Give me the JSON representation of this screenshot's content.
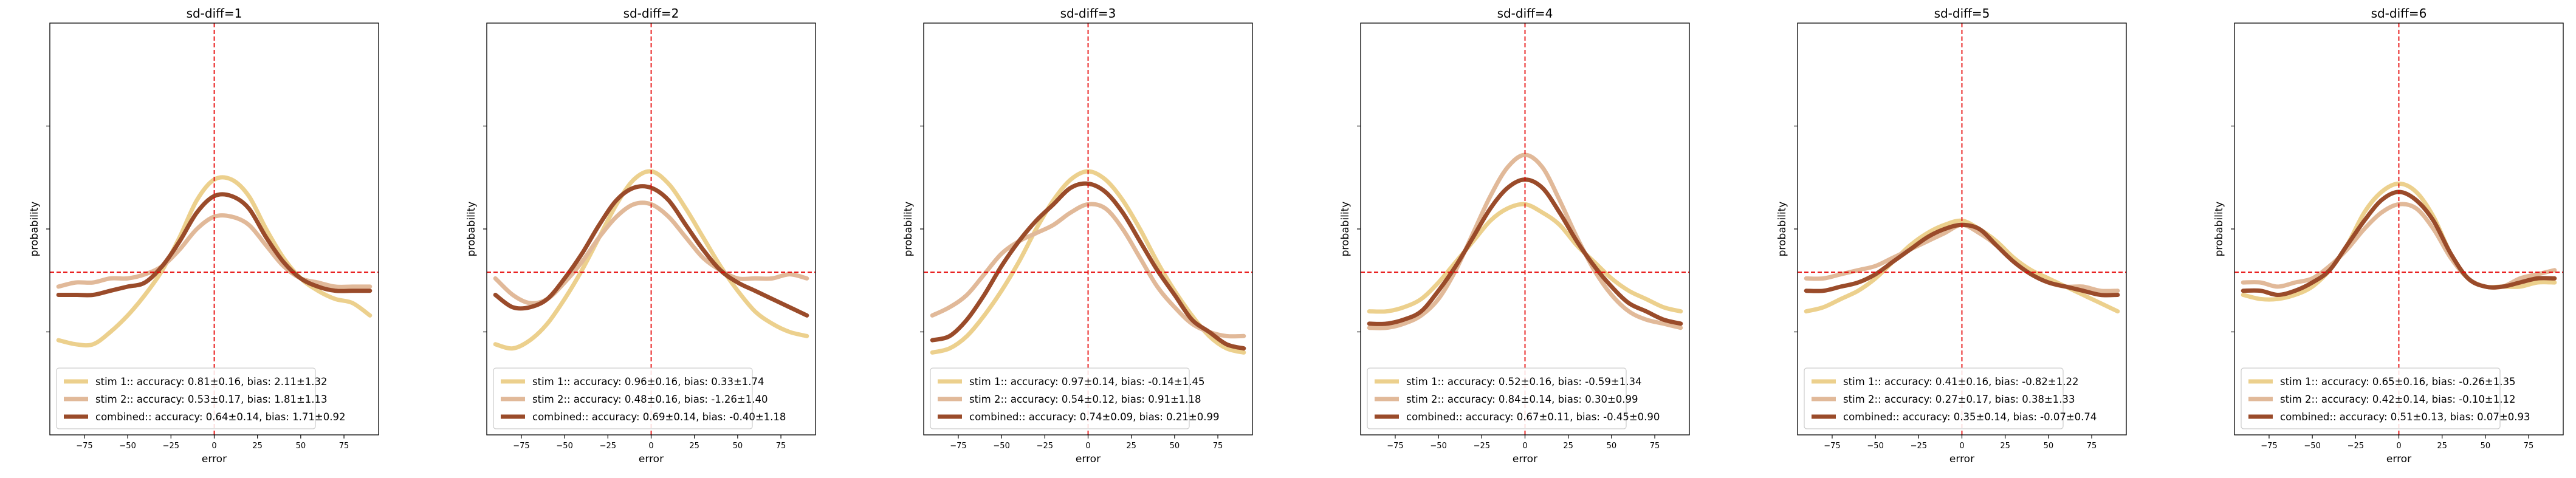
{
  "colors": {
    "stim1": "#ecd08d",
    "stim2": "#e1b999",
    "combined": "#9a4b2a",
    "reference": "#e60000"
  },
  "chart_data": [
    {
      "type": "line",
      "title": "sd-diff=1",
      "xlabel": "error",
      "ylabel": "probability",
      "xlim": [
        -95,
        95
      ],
      "ylim": [
        0,
        1
      ],
      "xticks": [
        -75,
        -50,
        -25,
        0,
        25,
        50,
        75
      ],
      "tick_labels": [
        "−75",
        "−50",
        "−25",
        "0",
        "25",
        "50",
        "75"
      ],
      "reference_lines": {
        "x": 0,
        "y": 0.395
      },
      "legend_loc": "lower-left",
      "x": [
        -90,
        -80,
        -70,
        -60,
        -50,
        -40,
        -30,
        -20,
        -10,
        0,
        10,
        20,
        30,
        40,
        50,
        60,
        70,
        80,
        90
      ],
      "series": [
        {
          "name": "stim 1:: accuracy: 0.81±0.16, bias: 2.11±1.32",
          "values": [
            0.23,
            0.22,
            0.22,
            0.25,
            0.29,
            0.34,
            0.4,
            0.48,
            0.57,
            0.62,
            0.62,
            0.58,
            0.5,
            0.43,
            0.38,
            0.35,
            0.33,
            0.32,
            0.29
          ]
        },
        {
          "name": "stim 2:: accuracy: 0.53±0.17, bias: 1.81±1.13",
          "values": [
            0.36,
            0.37,
            0.37,
            0.38,
            0.38,
            0.39,
            0.41,
            0.45,
            0.5,
            0.53,
            0.53,
            0.51,
            0.46,
            0.41,
            0.38,
            0.37,
            0.36,
            0.36,
            0.36
          ]
        },
        {
          "name": "combined:: accuracy: 0.64±0.14, bias: 1.71±0.92",
          "values": [
            0.34,
            0.34,
            0.34,
            0.35,
            0.36,
            0.37,
            0.41,
            0.47,
            0.54,
            0.58,
            0.58,
            0.55,
            0.48,
            0.42,
            0.38,
            0.36,
            0.35,
            0.35,
            0.35
          ]
        }
      ]
    },
    {
      "type": "line",
      "title": "sd-diff=2",
      "xlabel": "error",
      "ylabel": "probability",
      "xlim": [
        -95,
        95
      ],
      "ylim": [
        0,
        1
      ],
      "xticks": [
        -75,
        -50,
        -25,
        0,
        25,
        50,
        75
      ],
      "tick_labels": [
        "−75",
        "−50",
        "−25",
        "0",
        "25",
        "50",
        "75"
      ],
      "reference_lines": {
        "x": 0,
        "y": 0.395
      },
      "legend_loc": "lower-left",
      "x": [
        -90,
        -80,
        -70,
        -60,
        -50,
        -40,
        -30,
        -20,
        -10,
        0,
        10,
        20,
        30,
        40,
        50,
        60,
        70,
        80,
        90
      ],
      "series": [
        {
          "name": "stim 1:: accuracy: 0.96±0.16, bias: 0.33±1.74",
          "values": [
            0.22,
            0.21,
            0.23,
            0.27,
            0.33,
            0.4,
            0.48,
            0.56,
            0.62,
            0.64,
            0.61,
            0.55,
            0.48,
            0.41,
            0.35,
            0.3,
            0.27,
            0.25,
            0.24
          ]
        },
        {
          "name": "stim 2:: accuracy: 0.48±0.16, bias: -1.26±1.40",
          "values": [
            0.38,
            0.34,
            0.32,
            0.33,
            0.37,
            0.42,
            0.48,
            0.53,
            0.56,
            0.56,
            0.53,
            0.48,
            0.43,
            0.4,
            0.38,
            0.38,
            0.38,
            0.39,
            0.38
          ]
        },
        {
          "name": "combined:: accuracy: 0.69±0.14, bias: -0.40±1.18",
          "values": [
            0.34,
            0.31,
            0.31,
            0.33,
            0.38,
            0.44,
            0.51,
            0.57,
            0.6,
            0.6,
            0.57,
            0.51,
            0.45,
            0.4,
            0.37,
            0.35,
            0.33,
            0.31,
            0.29
          ]
        }
      ]
    },
    {
      "type": "line",
      "title": "sd-diff=3",
      "xlabel": "error",
      "ylabel": "probability",
      "xlim": [
        -95,
        95
      ],
      "ylim": [
        0,
        1
      ],
      "xticks": [
        -75,
        -50,
        -25,
        0,
        25,
        50,
        75
      ],
      "tick_labels": [
        "−75",
        "−50",
        "−25",
        "0",
        "25",
        "50",
        "75"
      ],
      "reference_lines": {
        "x": 0,
        "y": 0.395
      },
      "legend_loc": "lower-left",
      "x": [
        -90,
        -80,
        -70,
        -60,
        -50,
        -40,
        -30,
        -20,
        -10,
        0,
        10,
        20,
        30,
        40,
        50,
        60,
        70,
        80,
        90
      ],
      "series": [
        {
          "name": "stim 1:: accuracy: 0.97±0.14, bias: -0.14±1.45",
          "values": [
            0.2,
            0.21,
            0.24,
            0.29,
            0.35,
            0.42,
            0.5,
            0.57,
            0.62,
            0.64,
            0.62,
            0.57,
            0.5,
            0.42,
            0.35,
            0.29,
            0.24,
            0.21,
            0.2
          ]
        },
        {
          "name": "stim 2:: accuracy: 0.54±0.12, bias: 0.91±1.18",
          "values": [
            0.29,
            0.31,
            0.34,
            0.39,
            0.44,
            0.47,
            0.49,
            0.51,
            0.54,
            0.56,
            0.55,
            0.5,
            0.43,
            0.36,
            0.31,
            0.27,
            0.25,
            0.24,
            0.24
          ]
        },
        {
          "name": "combined:: accuracy: 0.74±0.09, bias: 0.21±0.99",
          "values": [
            0.23,
            0.24,
            0.28,
            0.34,
            0.41,
            0.47,
            0.52,
            0.56,
            0.6,
            0.61,
            0.59,
            0.54,
            0.47,
            0.4,
            0.34,
            0.28,
            0.25,
            0.22,
            0.21
          ]
        }
      ]
    },
    {
      "type": "line",
      "title": "sd-diff=4",
      "xlabel": "error",
      "ylabel": "probability",
      "xlim": [
        -95,
        95
      ],
      "ylim": [
        0,
        1
      ],
      "xticks": [
        -75,
        -50,
        -25,
        0,
        25,
        50,
        75
      ],
      "tick_labels": [
        "−75",
        "−50",
        "−25",
        "0",
        "25",
        "50",
        "75"
      ],
      "reference_lines": {
        "x": 0,
        "y": 0.395
      },
      "legend_loc": "lower-left",
      "x": [
        -90,
        -80,
        -70,
        -60,
        -50,
        -40,
        -30,
        -20,
        -10,
        0,
        10,
        20,
        30,
        40,
        50,
        60,
        70,
        80,
        90
      ],
      "series": [
        {
          "name": "stim 1:: accuracy: 0.52±0.16, bias: -0.59±1.34",
          "values": [
            0.3,
            0.3,
            0.31,
            0.33,
            0.37,
            0.42,
            0.47,
            0.52,
            0.55,
            0.56,
            0.54,
            0.51,
            0.46,
            0.42,
            0.38,
            0.35,
            0.33,
            0.31,
            0.3
          ]
        },
        {
          "name": "stim 2:: accuracy: 0.84±0.14, bias: 0.30±0.99",
          "values": [
            0.26,
            0.26,
            0.27,
            0.29,
            0.33,
            0.4,
            0.49,
            0.58,
            0.65,
            0.68,
            0.65,
            0.57,
            0.48,
            0.4,
            0.34,
            0.3,
            0.28,
            0.27,
            0.26
          ]
        },
        {
          "name": "combined:: accuracy: 0.67±0.11, bias: -0.45±0.90",
          "values": [
            0.27,
            0.27,
            0.28,
            0.3,
            0.35,
            0.41,
            0.48,
            0.55,
            0.6,
            0.62,
            0.6,
            0.54,
            0.47,
            0.41,
            0.36,
            0.32,
            0.3,
            0.28,
            0.27
          ]
        }
      ]
    },
    {
      "type": "line",
      "title": "sd-diff=5",
      "xlabel": "error",
      "ylabel": "probability",
      "xlim": [
        -95,
        95
      ],
      "ylim": [
        0,
        1
      ],
      "xticks": [
        -75,
        -50,
        -25,
        0,
        25,
        50,
        75
      ],
      "tick_labels": [
        "−75",
        "−50",
        "−25",
        "0",
        "25",
        "50",
        "75"
      ],
      "reference_lines": {
        "x": 0,
        "y": 0.395
      },
      "legend_loc": "lower-left",
      "x": [
        -90,
        -80,
        -70,
        -60,
        -50,
        -40,
        -30,
        -20,
        -10,
        0,
        10,
        20,
        30,
        40,
        50,
        60,
        70,
        80,
        90
      ],
      "series": [
        {
          "name": "stim 1:: accuracy: 0.41±0.16, bias: -0.82±1.22",
          "values": [
            0.3,
            0.31,
            0.33,
            0.35,
            0.38,
            0.42,
            0.46,
            0.49,
            0.51,
            0.52,
            0.5,
            0.47,
            0.43,
            0.4,
            0.38,
            0.36,
            0.34,
            0.32,
            0.3
          ]
        },
        {
          "name": "stim 2:: accuracy: 0.27±0.17, bias: 0.38±1.33",
          "values": [
            0.38,
            0.38,
            0.39,
            0.4,
            0.41,
            0.43,
            0.45,
            0.47,
            0.49,
            0.51,
            0.49,
            0.46,
            0.42,
            0.39,
            0.37,
            0.36,
            0.36,
            0.35,
            0.35
          ]
        },
        {
          "name": "combined:: accuracy: 0.35±0.14, bias: -0.07±0.74",
          "values": [
            0.35,
            0.35,
            0.36,
            0.37,
            0.39,
            0.42,
            0.45,
            0.48,
            0.5,
            0.51,
            0.5,
            0.46,
            0.42,
            0.39,
            0.37,
            0.36,
            0.35,
            0.34,
            0.34
          ]
        }
      ]
    },
    {
      "type": "line",
      "title": "sd-diff=6",
      "xlabel": "error",
      "ylabel": "probability",
      "xlim": [
        -95,
        95
      ],
      "ylim": [
        0,
        1
      ],
      "xticks": [
        -75,
        -50,
        -25,
        0,
        25,
        50,
        75
      ],
      "tick_labels": [
        "−75",
        "−50",
        "−25",
        "0",
        "25",
        "50",
        "75"
      ],
      "reference_lines": {
        "x": 0,
        "y": 0.395
      },
      "legend_loc": "lower-left",
      "x": [
        -90,
        -80,
        -70,
        -60,
        -50,
        -40,
        -30,
        -20,
        -10,
        0,
        10,
        20,
        30,
        40,
        50,
        60,
        70,
        80,
        90
      ],
      "series": [
        {
          "name": "stim 1:: accuracy: 0.65±0.16, bias: -0.26±1.35",
          "values": [
            0.34,
            0.33,
            0.33,
            0.34,
            0.36,
            0.4,
            0.46,
            0.54,
            0.59,
            0.61,
            0.59,
            0.53,
            0.44,
            0.38,
            0.36,
            0.36,
            0.36,
            0.37,
            0.37
          ]
        },
        {
          "name": "stim 2:: accuracy: 0.42±0.14, bias: -0.10±1.12",
          "values": [
            0.37,
            0.37,
            0.36,
            0.37,
            0.38,
            0.41,
            0.45,
            0.5,
            0.54,
            0.56,
            0.55,
            0.5,
            0.43,
            0.38,
            0.36,
            0.36,
            0.38,
            0.39,
            0.4
          ]
        },
        {
          "name": "combined:: accuracy: 0.51±0.13, bias: 0.07±0.93",
          "values": [
            0.35,
            0.35,
            0.34,
            0.35,
            0.37,
            0.4,
            0.46,
            0.52,
            0.57,
            0.59,
            0.57,
            0.52,
            0.44,
            0.38,
            0.36,
            0.36,
            0.37,
            0.38,
            0.38
          ]
        }
      ]
    }
  ]
}
